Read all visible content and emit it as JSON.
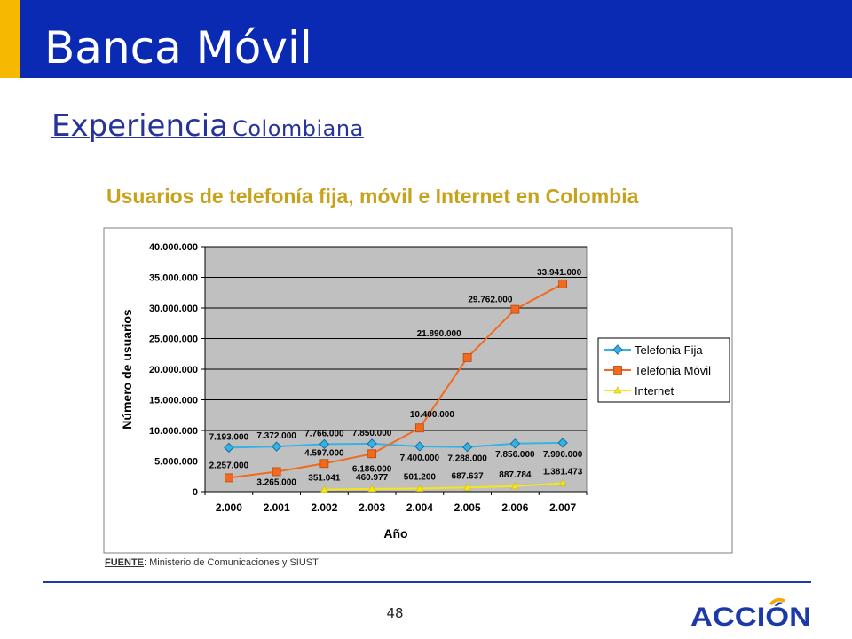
{
  "slide": {
    "title": "Banca Móvil",
    "subtitle_main": "Experiencia",
    "subtitle_sub": "Colombiana",
    "page_number": "48",
    "logo_text": "ACCIÓN"
  },
  "source": {
    "label": "FUENTE",
    "text": ": Ministerio de Comunicaciones y SIUST"
  },
  "colors": {
    "header": "#0a2ab4",
    "accent": "#f6b800",
    "chart_title": "#c9a21c",
    "plot_bg": "#c0c0c0"
  },
  "chart_data": {
    "type": "line",
    "title": "Usuarios de telefonía fija, móvil e Internet en Colombia",
    "xlabel": "Año",
    "ylabel": "Número de usuarios",
    "ylim": [
      0,
      40000000
    ],
    "y_ticks": [
      0,
      5000000,
      10000000,
      15000000,
      20000000,
      25000000,
      30000000,
      35000000,
      40000000
    ],
    "y_tick_labels": [
      "0",
      "5.000.000",
      "10.000.000",
      "15.000.000",
      "20.000.000",
      "25.000.000",
      "30.000.000",
      "35.000.000",
      "40.000.000"
    ],
    "categories": [
      "2.000",
      "2.001",
      "2.002",
      "2.003",
      "2.004",
      "2.005",
      "2.006",
      "2.007"
    ],
    "grid": true,
    "legend_position": "right",
    "series": [
      {
        "name": "Telefonia Fija",
        "color": "#33b3e6",
        "marker": "diamond",
        "values": [
          7193000,
          7372000,
          7766000,
          7850000,
          7400000,
          7288000,
          7856000,
          7990000
        ],
        "labels": [
          "7.193.000",
          "7.372.000",
          "7.766.000",
          "7.850.000",
          "7.400.000",
          "7.288.000",
          "7.856.000",
          "7.990.000"
        ]
      },
      {
        "name": "Telefonia Móvil",
        "color": "#f26a1f",
        "marker": "square",
        "values": [
          2257000,
          3265000,
          4597000,
          6186000,
          10400000,
          21890000,
          29762000,
          33941000
        ],
        "labels": [
          "2.257.000",
          "3.265.000",
          "4.597.000",
          "6.186.000",
          "10.400.000",
          "21.890.000",
          "29.762.000",
          "33.941.000"
        ]
      },
      {
        "name": "Internet",
        "color": "#f5e61a",
        "marker": "triangle",
        "values": [
          null,
          null,
          351041,
          460977,
          501200,
          687637,
          887784,
          1381473
        ],
        "labels": [
          null,
          null,
          "351.041",
          "460.977",
          "501.200",
          "687.637",
          "887.784",
          "1.381.473"
        ]
      }
    ]
  }
}
